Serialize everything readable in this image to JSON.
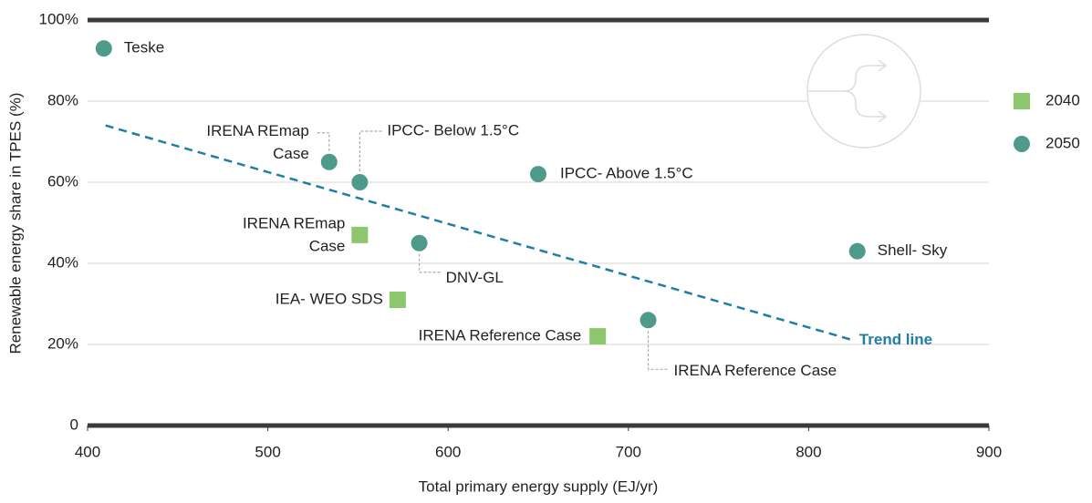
{
  "chart_data": {
    "type": "scatter",
    "x_label": "Total primary energy supply (EJ/yr)",
    "y_label": "Renewable energy share in TPES (%)",
    "xlim": [
      400,
      900
    ],
    "xticks": [
      400,
      500,
      600,
      700,
      800,
      900
    ],
    "ylim": [
      0,
      100
    ],
    "yticks": [
      0,
      {
        "value": 20,
        "label": "20%"
      },
      {
        "value": 40,
        "label": "40%"
      },
      {
        "value": 60,
        "label": "60%"
      },
      {
        "value": 80,
        "label": "80%"
      },
      {
        "value": 100,
        "label": "100%"
      }
    ],
    "grid": true,
    "legend": "right",
    "series": [
      {
        "name": "2040",
        "marker": "square",
        "color": "#8cc66d",
        "x": [
          551,
          572,
          683
        ],
        "values": [
          47,
          31,
          22
        ],
        "labels": [
          [
            "IRENA REmap",
            "Case"
          ],
          [
            "IEA- WEO SDS"
          ],
          [
            "IRENA Reference Case"
          ]
        ]
      },
      {
        "name": "2050",
        "marker": "circle",
        "color": "#4f9b8b",
        "x": [
          409,
          534,
          551,
          650,
          584,
          827,
          711
        ],
        "values": [
          93,
          65,
          60,
          62,
          45,
          43,
          26
        ],
        "labels": [
          [
            "Teske"
          ],
          [
            "IRENA REmap",
            "Case"
          ],
          [
            "IPCC- Below 1.5°C"
          ],
          [
            "IPCC- Above 1.5°C"
          ],
          [
            "DNV-GL"
          ],
          [
            "Shell- Sky"
          ],
          [
            "IRENA Reference Case"
          ]
        ]
      }
    ],
    "trend_line": {
      "label": "Trend line",
      "color": "#1f7ea6",
      "x": [
        410,
        825
      ],
      "values": [
        74,
        21
      ]
    }
  }
}
